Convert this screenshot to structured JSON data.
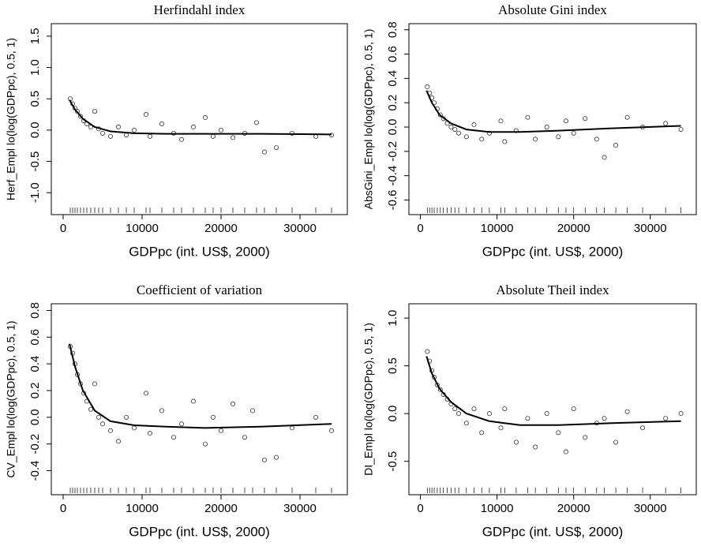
{
  "chart_data": [
    {
      "type": "scatter",
      "title": "Herfindahl index",
      "x_label": "GDPpc (int. US$, 2000)",
      "y_label": "Herf_Empl lo(log(GDPpc), 0.5, 1)",
      "xlim": [
        -1500,
        36000
      ],
      "xticks": [
        0,
        10000,
        20000,
        30000
      ],
      "ylim": [
        -1.35,
        1.7
      ],
      "yticks": [
        {
          "value": -1,
          "label": "-1.0"
        },
        -0.5,
        {
          "value": 0,
          "label": "0.0"
        },
        0.5,
        {
          "value": 1,
          "label": "1.0"
        },
        1.5
      ],
      "points": {
        "x": [
          900,
          1200,
          1500,
          1800,
          2200,
          2600,
          3000,
          3500,
          4000,
          4500,
          5000,
          6000,
          7000,
          8000,
          9000,
          10500,
          11000,
          12500,
          14000,
          15000,
          16500,
          18000,
          19000,
          20000,
          21500,
          23000,
          24500,
          25500,
          27000,
          29000,
          32000,
          34000
        ],
        "y": [
          0.5,
          0.42,
          0.35,
          0.3,
          0.22,
          0.15,
          0.1,
          0.05,
          0.3,
          0.02,
          -0.05,
          -0.1,
          0.05,
          -0.08,
          0.0,
          0.25,
          -0.1,
          0.1,
          -0.05,
          -0.15,
          0.05,
          0.2,
          -0.1,
          0.0,
          -0.12,
          -0.05,
          0.12,
          -0.35,
          -0.28,
          -0.05,
          -0.1,
          -0.08
        ]
      },
      "fit": {
        "x": [
          800,
          1500,
          2500,
          4000,
          6000,
          9000,
          13000,
          18000,
          25000,
          34000
        ],
        "y": [
          0.48,
          0.33,
          0.18,
          0.05,
          -0.02,
          -0.05,
          -0.06,
          -0.06,
          -0.06,
          -0.07
        ]
      }
    },
    {
      "type": "scatter",
      "title": "Absolute Gini index",
      "x_label": "GDPpc (int. US$, 2000)",
      "y_label": "AbsGini_Empl lo(log(GDPpc), 0.5, 1)",
      "xlim": [
        -1500,
        36000
      ],
      "xticks": [
        0,
        10000,
        20000,
        30000
      ],
      "ylim": [
        -0.72,
        0.85
      ],
      "yticks": [
        -0.6,
        -0.4,
        -0.2,
        {
          "value": 0,
          "label": "0.0"
        },
        0.2,
        0.4,
        0.6,
        0.8
      ],
      "points": {
        "x": [
          900,
          1200,
          1500,
          1800,
          2200,
          2600,
          3000,
          3500,
          4000,
          4500,
          5000,
          6000,
          7000,
          8000,
          9000,
          10500,
          11000,
          12500,
          14000,
          15000,
          16500,
          18000,
          19000,
          20000,
          21500,
          23000,
          24000,
          25500,
          27000,
          29000,
          32000,
          34000
        ],
        "y": [
          0.33,
          0.28,
          0.24,
          0.2,
          0.15,
          0.1,
          0.07,
          0.03,
          0.0,
          -0.02,
          -0.05,
          -0.08,
          0.02,
          -0.1,
          -0.05,
          0.05,
          -0.12,
          -0.03,
          0.08,
          -0.1,
          0.0,
          -0.08,
          0.05,
          -0.05,
          0.07,
          -0.1,
          -0.25,
          -0.15,
          0.08,
          0.0,
          0.03,
          -0.02
        ]
      },
      "fit": {
        "x": [
          800,
          1500,
          2500,
          4000,
          6000,
          9000,
          13000,
          18000,
          25000,
          34000
        ],
        "y": [
          0.3,
          0.2,
          0.1,
          0.03,
          -0.02,
          -0.04,
          -0.04,
          -0.03,
          -0.01,
          0.01
        ]
      }
    },
    {
      "type": "scatter",
      "title": "Coefficient of variation",
      "x_label": "GDPpc (int. US$, 2000)",
      "y_label": "CV_Empl lo(log(GDPpc), 0.5, 1)",
      "xlim": [
        -1500,
        36000
      ],
      "xticks": [
        0,
        10000,
        20000,
        30000
      ],
      "ylim": [
        -0.58,
        0.85
      ],
      "yticks": [
        -0.4,
        -0.2,
        {
          "value": 0,
          "label": "0.0"
        },
        0.2,
        0.4,
        0.6,
        0.8
      ],
      "points": {
        "x": [
          900,
          1200,
          1500,
          1800,
          2200,
          2600,
          3000,
          3500,
          4000,
          4500,
          5000,
          6000,
          7000,
          8000,
          9000,
          10500,
          11000,
          12500,
          14000,
          15000,
          16500,
          18000,
          19000,
          20000,
          21500,
          23000,
          24000,
          25500,
          27000,
          29000,
          32000,
          34000
        ],
        "y": [
          0.53,
          0.48,
          0.4,
          0.32,
          0.25,
          0.18,
          0.12,
          0.06,
          0.25,
          0.0,
          -0.05,
          -0.1,
          -0.18,
          0.0,
          -0.08,
          0.18,
          -0.12,
          0.05,
          -0.15,
          -0.05,
          0.12,
          -0.2,
          0.0,
          -0.1,
          0.1,
          -0.15,
          0.05,
          -0.32,
          -0.3,
          -0.08,
          0.0,
          -0.1
        ]
      },
      "fit": {
        "x": [
          800,
          1500,
          2500,
          4000,
          6000,
          9000,
          13000,
          18000,
          25000,
          34000
        ],
        "y": [
          0.55,
          0.38,
          0.2,
          0.05,
          -0.03,
          -0.06,
          -0.07,
          -0.08,
          -0.07,
          -0.05
        ]
      }
    },
    {
      "type": "scatter",
      "title": "Absolute Theil index",
      "x_label": "GDPpc (int. US$, 2000)",
      "y_label": "DI_Empl lo(log(GDPpc), 0.5, 1)",
      "xlim": [
        -1500,
        36000
      ],
      "xticks": [
        0,
        10000,
        20000,
        30000
      ],
      "ylim": [
        -0.85,
        1.15
      ],
      "yticks": [
        -0.5,
        {
          "value": 0,
          "label": "0.0"
        },
        0.5,
        {
          "value": 1,
          "label": "1.0"
        }
      ],
      "points": {
        "x": [
          900,
          1200,
          1500,
          1800,
          2200,
          2600,
          3000,
          3500,
          4000,
          4500,
          5000,
          6000,
          7000,
          8000,
          9000,
          10500,
          11000,
          12500,
          14000,
          15000,
          16500,
          18000,
          19000,
          20000,
          21500,
          23000,
          24000,
          25500,
          27000,
          29000,
          32000,
          34000
        ],
        "y": [
          0.65,
          0.55,
          0.45,
          0.38,
          0.3,
          0.25,
          0.2,
          0.15,
          0.1,
          0.05,
          0.0,
          -0.1,
          0.05,
          -0.2,
          0.0,
          -0.15,
          0.05,
          -0.3,
          -0.05,
          -0.35,
          0.0,
          -0.2,
          -0.4,
          0.05,
          -0.25,
          -0.1,
          -0.05,
          -0.3,
          0.02,
          -0.15,
          -0.05,
          0.0
        ]
      },
      "fit": {
        "x": [
          800,
          1500,
          2500,
          4000,
          6000,
          9000,
          13000,
          18000,
          25000,
          34000
        ],
        "y": [
          0.6,
          0.42,
          0.26,
          0.12,
          0.0,
          -0.08,
          -0.12,
          -0.12,
          -0.1,
          -0.08
        ]
      }
    }
  ]
}
